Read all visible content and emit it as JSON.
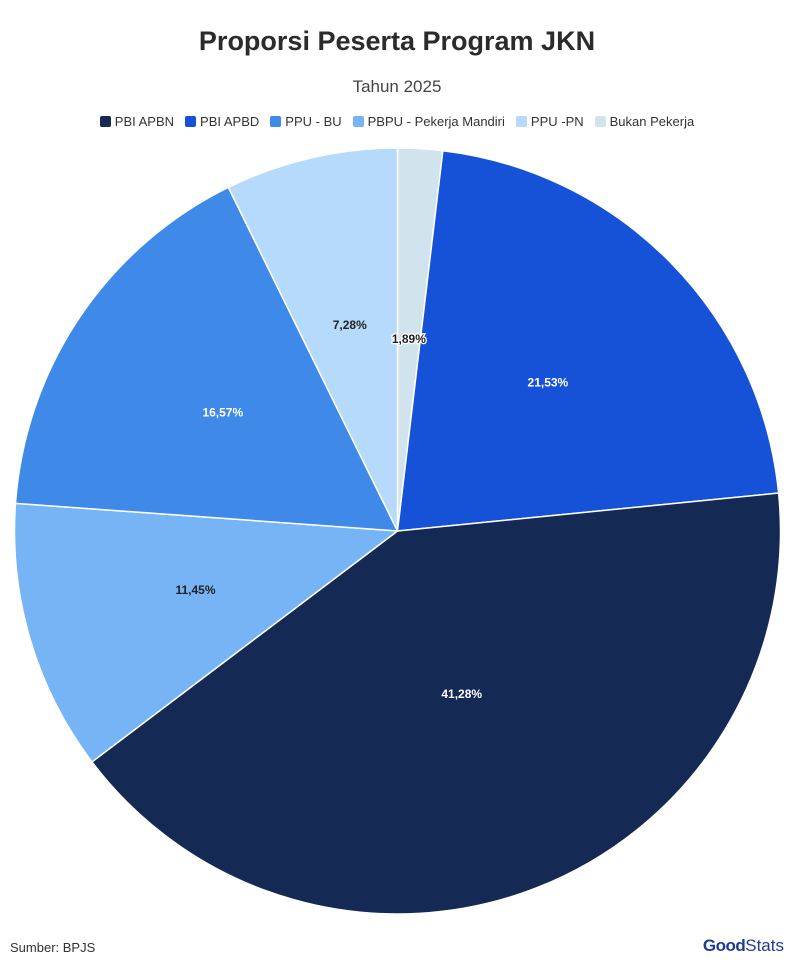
{
  "chart_data": {
    "type": "pie",
    "title": "Proporsi Peserta Program JKN",
    "subtitle": "Tahun 2025",
    "legend_position": "top",
    "slices": [
      {
        "label": "PBI APBN",
        "value": 41.28,
        "value_label": "41,28%",
        "color": "#152955",
        "label_color": "#ffffff"
      },
      {
        "label": "PBI APBD",
        "value": 21.53,
        "value_label": "21,53%",
        "color": "#1652d8",
        "label_color": "#ffffff"
      },
      {
        "label": "PPU - BU",
        "value": 16.57,
        "value_label": "16,57%",
        "color": "#3f89e8",
        "label_color": "#ffffff"
      },
      {
        "label": "PBPU - Pekerja Mandiri",
        "value": 11.45,
        "value_label": "11,45%",
        "color": "#76b4f5",
        "label_color": "#222222"
      },
      {
        "label": "PPU -PN",
        "value": 7.28,
        "value_label": "7,28%",
        "color": "#b5dafb",
        "label_color": "#222222"
      },
      {
        "label": "Bukan Pekerja",
        "value": 1.89,
        "value_label": "1,89%",
        "color": "#d1e3ec",
        "label_color": "#222222"
      }
    ]
  },
  "source": "Sumber: BPJS",
  "logo": {
    "part1": "Good",
    "part2": "Stats"
  }
}
